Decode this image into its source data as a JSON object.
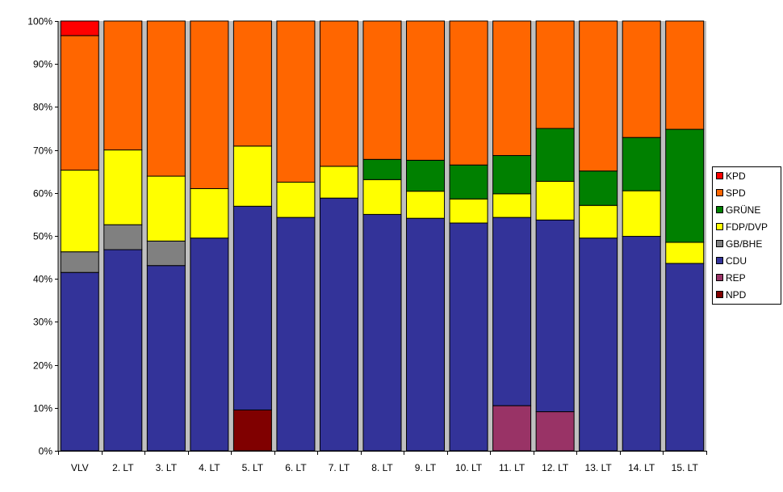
{
  "chart_data": {
    "type": "bar",
    "stacked": "percent",
    "categories": [
      "VLV",
      "2. LT",
      "3. LT",
      "4. LT",
      "5. LT",
      "6. LT",
      "7. LT",
      "8. LT",
      "9. LT",
      "10. LT",
      "11. LT",
      "12. LT",
      "13. LT",
      "14. LT",
      "15. LT"
    ],
    "ylim": [
      0,
      100
    ],
    "yticks": [
      0,
      10,
      20,
      30,
      40,
      50,
      60,
      70,
      80,
      90,
      100
    ],
    "ytick_labels": [
      "0%",
      "10%",
      "20%",
      "30%",
      "40%",
      "50%",
      "60%",
      "70%",
      "80%",
      "90%",
      "100%"
    ],
    "plot_background": "#c0c0c0",
    "grid": false,
    "legend_position": "right",
    "series": [
      {
        "name": "NPD",
        "color": "#800000",
        "values": [
          0,
          0,
          0,
          0,
          9.5,
          0,
          0,
          0,
          0,
          0,
          0,
          0,
          0,
          0,
          0
        ]
      },
      {
        "name": "REP",
        "color": "#993366",
        "values": [
          0,
          0,
          0,
          0,
          0,
          0,
          0,
          0,
          0,
          0,
          10.5,
          9.1,
          0,
          0,
          0
        ]
      },
      {
        "name": "CDU",
        "color": "#333399",
        "values": [
          41.5,
          46.8,
          43.1,
          49.5,
          47.4,
          54.3,
          58.8,
          55.0,
          54.1,
          53.0,
          43.8,
          44.6,
          49.5,
          49.9,
          43.6
        ]
      },
      {
        "name": "GB/BHE",
        "color": "#808080",
        "values": [
          4.8,
          5.8,
          5.7,
          0,
          0,
          0,
          0,
          0,
          0,
          0,
          0,
          0,
          0,
          0,
          0
        ]
      },
      {
        "name": "FDP/DVP",
        "color": "#ffff00",
        "values": [
          19.0,
          17.4,
          15.1,
          11.5,
          14.0,
          8.2,
          7.4,
          8.1,
          6.3,
          5.6,
          5.5,
          9.0,
          7.6,
          10.6,
          4.9
        ]
      },
      {
        "name": "GRÜNE",
        "color": "#008000",
        "values": [
          0,
          0,
          0,
          0,
          0,
          0,
          0,
          4.7,
          7.2,
          7.9,
          8.9,
          12.3,
          8.0,
          12.4,
          26.3
        ]
      },
      {
        "name": "SPD",
        "color": "#ff6600",
        "values": [
          31.3,
          30.0,
          36.1,
          39.0,
          29.1,
          37.5,
          33.8,
          32.2,
          32.4,
          33.5,
          31.3,
          25.0,
          34.9,
          27.1,
          25.2
        ]
      },
      {
        "name": "KPD",
        "color": "#ff0000",
        "values": [
          3.4,
          0,
          0,
          0,
          0,
          0,
          0,
          0,
          0,
          0,
          0,
          0,
          0,
          0,
          0
        ]
      }
    ],
    "legend_order": [
      "KPD",
      "SPD",
      "GRÜNE",
      "FDP/DVP",
      "GB/BHE",
      "CDU",
      "REP",
      "NPD"
    ]
  }
}
